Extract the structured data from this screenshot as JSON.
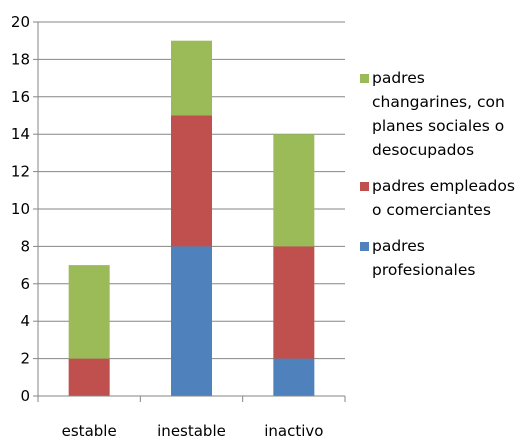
{
  "chart_data": {
    "type": "bar",
    "stacked": true,
    "categories": [
      "estable",
      "inestable",
      "inactivo"
    ],
    "series": [
      {
        "name": "padres profesionales",
        "values": [
          0,
          8,
          2
        ],
        "color": "#4f81bd"
      },
      {
        "name": "padres empleados o comerciantes",
        "values": [
          2,
          7,
          6
        ],
        "color": "#c0504d"
      },
      {
        "name": "padres changarines, con planes sociales o desocupados",
        "values": [
          5,
          4,
          6
        ],
        "color": "#9bbb59"
      }
    ],
    "yticks": [
      0,
      2,
      4,
      6,
      8,
      10,
      12,
      14,
      16,
      18,
      20
    ],
    "ylim": [
      0,
      20
    ],
    "grid": true,
    "legend_position": "right",
    "legend_order": [
      2,
      1,
      0
    ]
  }
}
